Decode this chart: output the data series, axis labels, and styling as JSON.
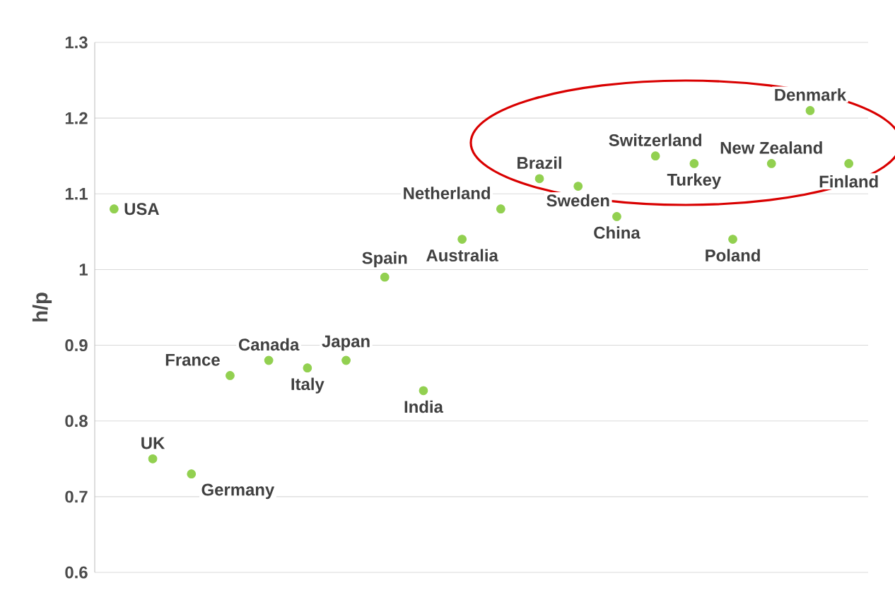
{
  "chart_data": {
    "type": "scatter",
    "ylabel": "h/p",
    "categories": [
      null,
      null,
      null,
      null,
      null,
      null,
      null,
      null,
      null,
      null,
      null,
      null,
      null,
      null,
      null,
      null,
      null,
      null,
      null,
      null
    ],
    "series": [
      {
        "name": "USA",
        "values": [
          1.08,
          null,
          null,
          null,
          null,
          null,
          null,
          null,
          null,
          null,
          null,
          null,
          null,
          null,
          null,
          null,
          null,
          null,
          null,
          null
        ]
      },
      {
        "name": "UK",
        "values": [
          null,
          0.75,
          null,
          null,
          null,
          null,
          null,
          null,
          null,
          null,
          null,
          null,
          null,
          null,
          null,
          null,
          null,
          null,
          null,
          null
        ]
      },
      {
        "name": "Germany",
        "values": [
          null,
          null,
          0.73,
          null,
          null,
          null,
          null,
          null,
          null,
          null,
          null,
          null,
          null,
          null,
          null,
          null,
          null,
          null,
          null,
          null
        ]
      },
      {
        "name": "France",
        "values": [
          null,
          null,
          null,
          0.86,
          null,
          null,
          null,
          null,
          null,
          null,
          null,
          null,
          null,
          null,
          null,
          null,
          null,
          null,
          null,
          null
        ]
      },
      {
        "name": "Canada",
        "values": [
          null,
          null,
          null,
          null,
          0.88,
          null,
          null,
          null,
          null,
          null,
          null,
          null,
          null,
          null,
          null,
          null,
          null,
          null,
          null,
          null
        ]
      },
      {
        "name": "Italy",
        "values": [
          null,
          null,
          null,
          null,
          null,
          0.87,
          null,
          null,
          null,
          null,
          null,
          null,
          null,
          null,
          null,
          null,
          null,
          null,
          null,
          null
        ]
      },
      {
        "name": "Japan",
        "values": [
          null,
          null,
          null,
          null,
          null,
          null,
          0.88,
          null,
          null,
          null,
          null,
          null,
          null,
          null,
          null,
          null,
          null,
          null,
          null,
          null
        ]
      },
      {
        "name": "Spain",
        "values": [
          null,
          null,
          null,
          null,
          null,
          null,
          null,
          0.99,
          null,
          null,
          null,
          null,
          null,
          null,
          null,
          null,
          null,
          null,
          null,
          null
        ]
      },
      {
        "name": "India",
        "values": [
          null,
          null,
          null,
          null,
          null,
          null,
          null,
          null,
          0.84,
          null,
          null,
          null,
          null,
          null,
          null,
          null,
          null,
          null,
          null,
          null
        ]
      },
      {
        "name": "Australia",
        "values": [
          null,
          null,
          null,
          null,
          null,
          null,
          null,
          null,
          null,
          1.04,
          null,
          null,
          null,
          null,
          null,
          null,
          null,
          null,
          null,
          null
        ]
      },
      {
        "name": "Netherland",
        "values": [
          null,
          null,
          null,
          null,
          null,
          null,
          null,
          null,
          null,
          null,
          1.08,
          null,
          null,
          null,
          null,
          null,
          null,
          null,
          null,
          null
        ]
      },
      {
        "name": "Brazil",
        "values": [
          null,
          null,
          null,
          null,
          null,
          null,
          null,
          null,
          null,
          null,
          null,
          1.12,
          null,
          null,
          null,
          null,
          null,
          null,
          null,
          null
        ]
      },
      {
        "name": "Sweden",
        "values": [
          null,
          null,
          null,
          null,
          null,
          null,
          null,
          null,
          null,
          null,
          null,
          null,
          1.11,
          null,
          null,
          null,
          null,
          null,
          null,
          null
        ]
      },
      {
        "name": "China",
        "values": [
          null,
          null,
          null,
          null,
          null,
          null,
          null,
          null,
          null,
          null,
          null,
          null,
          null,
          1.07,
          null,
          null,
          null,
          null,
          null,
          null
        ]
      },
      {
        "name": "Switzerland",
        "values": [
          null,
          null,
          null,
          null,
          null,
          null,
          null,
          null,
          null,
          null,
          null,
          null,
          null,
          null,
          1.15,
          null,
          null,
          null,
          null,
          null
        ]
      },
      {
        "name": "Turkey",
        "values": [
          null,
          null,
          null,
          null,
          null,
          null,
          null,
          null,
          null,
          null,
          null,
          null,
          null,
          null,
          null,
          1.14,
          null,
          null,
          null,
          null
        ]
      },
      {
        "name": "Poland",
        "values": [
          null,
          null,
          null,
          null,
          null,
          null,
          null,
          null,
          null,
          null,
          null,
          null,
          null,
          null,
          null,
          null,
          1.04,
          null,
          null,
          null
        ]
      },
      {
        "name": "New Zealand",
        "values": [
          null,
          null,
          null,
          null,
          null,
          null,
          null,
          null,
          null,
          null,
          null,
          null,
          null,
          null,
          null,
          null,
          null,
          1.14,
          null,
          null
        ]
      },
      {
        "name": "Denmark",
        "values": [
          null,
          null,
          null,
          null,
          null,
          null,
          null,
          null,
          null,
          null,
          null,
          null,
          null,
          null,
          null,
          null,
          null,
          null,
          1.21,
          null
        ]
      },
      {
        "name": "Finland",
        "values": [
          null,
          null,
          null,
          null,
          null,
          null,
          null,
          null,
          null,
          null,
          null,
          null,
          null,
          null,
          null,
          null,
          null,
          null,
          null,
          1.14
        ]
      }
    ],
    "color": "#92d050",
    "marker": "circle",
    "ylim": [
      0.6,
      1.3
    ],
    "yticks": [
      0.6,
      0.7,
      0.8,
      0.9,
      1,
      1.1,
      1.2,
      1.3
    ],
    "grid": "y",
    "legend": false
  }
}
